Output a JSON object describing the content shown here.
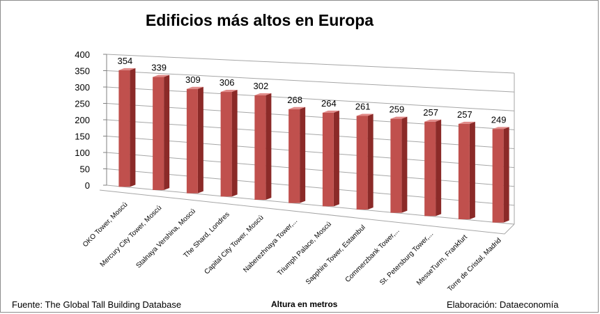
{
  "chart_data": {
    "type": "bar",
    "title": "Edificios más altos en Europa",
    "xlabel": "Altura en metros",
    "ylabel": "",
    "ylim": [
      0,
      400
    ],
    "yticks": [
      "0",
      "50",
      "100",
      "150",
      "200",
      "250",
      "300",
      "350",
      "400"
    ],
    "categories": [
      "OKO Tower, Moscú",
      "Mercury City Tower, Moscú",
      "Stalnaya Vershina, Moscú",
      "The Shard, Londres",
      "Capital City Tower, Moscú",
      "Naberezhnaya Tower,...",
      "Triumph Palace, Moscú",
      "Sapphire Tower, Estambul",
      "Commerzbank Tower,...",
      "St. Petersburg Tower,...",
      "MesseTurm, Frankfurt",
      "Torre de Cristal, Madrid"
    ],
    "values": [
      354,
      339,
      309,
      306,
      302,
      268,
      264,
      261,
      259,
      257,
      257,
      249
    ],
    "grid": true,
    "legend": "none"
  },
  "footer": {
    "source": "Fuente:  The Global Tall Building Database",
    "credit": "Elaboración: Dataeconomía"
  },
  "colors": {
    "bar_front": "#c0504d",
    "bar_side": "#8b2a28",
    "bar_top": "#e08a88",
    "grid": "#a6a6a6"
  }
}
